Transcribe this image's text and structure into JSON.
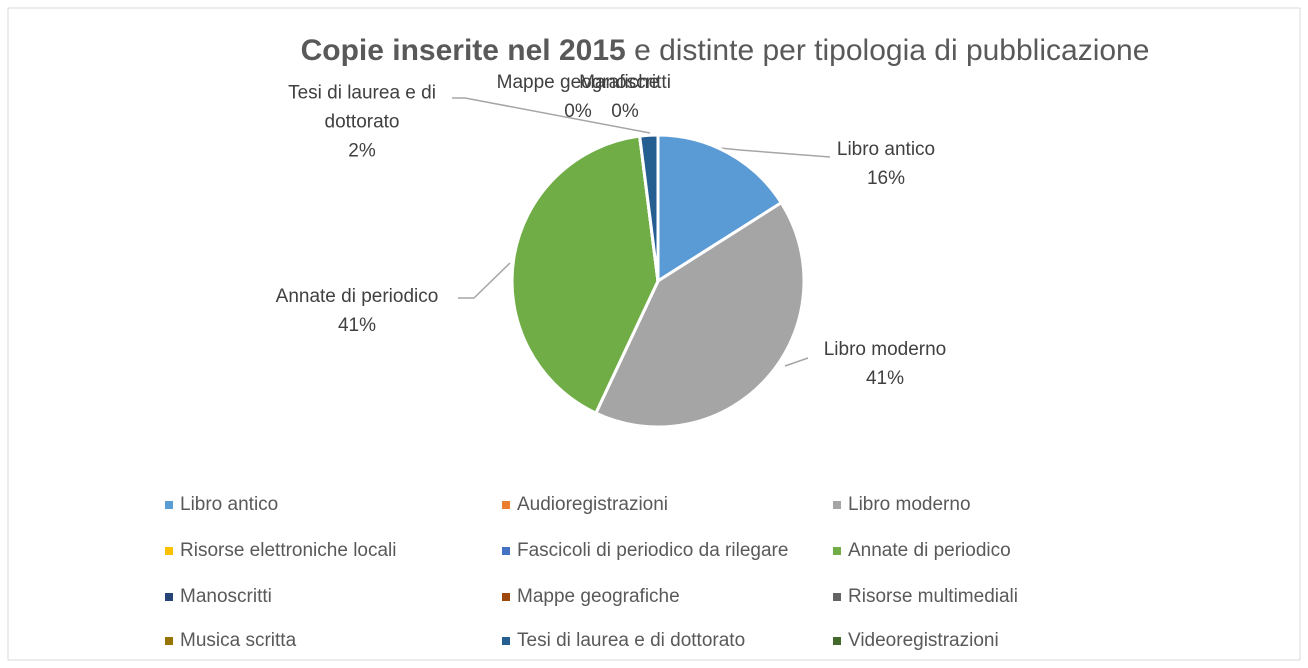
{
  "chart_data": {
    "type": "pie",
    "title": [
      "Copie inserite nel 2015",
      "e distinte per tipologia di pubblicazione"
    ],
    "categories": [
      "Libro antico",
      "Audioregistrazioni",
      "Libro moderno",
      "Risorse elettroniche locali",
      "Fascicoli di periodico da rilegare",
      "Annate di periodico",
      "Manoscritti",
      "Mappe geografiche",
      "Risorse multimediali",
      "Musica scritta",
      "Tesi di laurea e di dottorato",
      "Videoregistrazioni"
    ],
    "values": [
      16,
      0,
      41,
      0,
      0,
      41,
      0,
      0,
      0,
      0,
      2,
      0
    ],
    "value_labels": [
      "16%",
      null,
      "41%",
      null,
      null,
      "41%",
      "0%",
      "0%",
      null,
      null,
      "2%",
      null
    ],
    "colors": [
      "#5b9bd5",
      "#ed7d31",
      "#a5a5a5",
      "#ffc000",
      "#4472c4",
      "#70ad47",
      "#264478",
      "#9e480e",
      "#636363",
      "#997300",
      "#255e91",
      "#43682b"
    ],
    "legend": "bottom"
  }
}
